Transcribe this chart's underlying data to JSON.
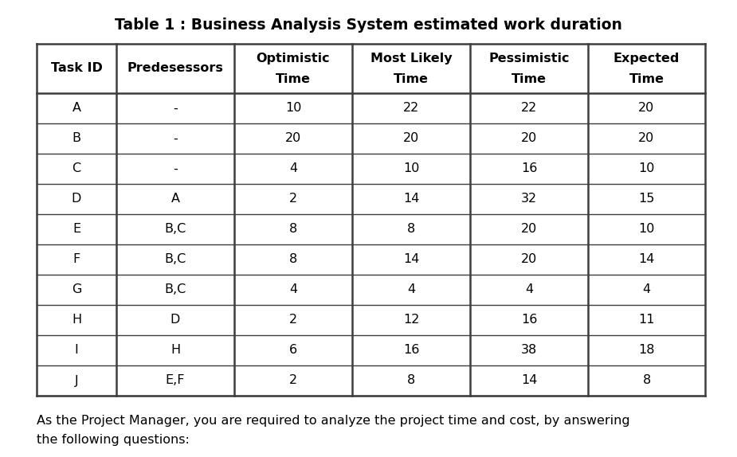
{
  "title": "Table 1 : Business Analysis System estimated work duration",
  "col_headers_line1": [
    "Task ID",
    "Predesessors",
    "Optimistic",
    "Most Likely",
    "Pessimistic",
    "Expected"
  ],
  "col_headers_line2": [
    "",
    "",
    "Time",
    "Time",
    "Time",
    "Time"
  ],
  "rows": [
    [
      "A",
      "-",
      "10",
      "22",
      "22",
      "20"
    ],
    [
      "B",
      "-",
      "20",
      "20",
      "20",
      "20"
    ],
    [
      "C",
      "-",
      "4",
      "10",
      "16",
      "10"
    ],
    [
      "D",
      "A",
      "2",
      "14",
      "32",
      "15"
    ],
    [
      "E",
      "B,C",
      "8",
      "8",
      "20",
      "10"
    ],
    [
      "F",
      "B,C",
      "8",
      "14",
      "20",
      "14"
    ],
    [
      "G",
      "B,C",
      "4",
      "4",
      "4",
      "4"
    ],
    [
      "H",
      "D",
      "2",
      "12",
      "16",
      "11"
    ],
    [
      "I",
      "H",
      "6",
      "16",
      "38",
      "18"
    ],
    [
      "J",
      "E,F",
      "2",
      "8",
      "14",
      "8"
    ]
  ],
  "footer_line1": "As the Project Manager, you are required to analyze the project time and cost, by answering",
  "footer_line2": "the following questions:",
  "bg_color": "#ffffff",
  "text_color": "#000000",
  "border_color": "#3d3d3d",
  "title_fontsize": 13.5,
  "header_fontsize": 11.5,
  "cell_fontsize": 11.5,
  "footer_fontsize": 11.5
}
